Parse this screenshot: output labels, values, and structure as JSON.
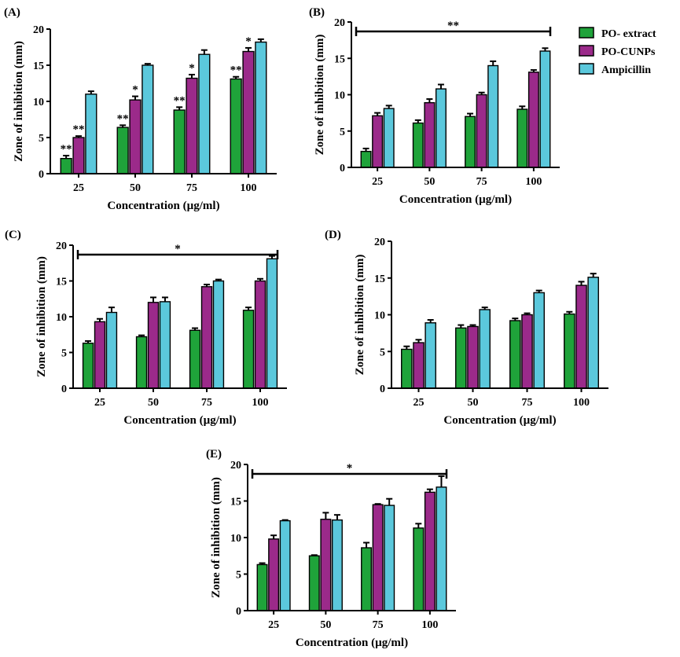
{
  "colors": {
    "series": [
      "#1fa33a",
      "#9b2a8a",
      "#5bc8dc"
    ],
    "error": "#000000"
  },
  "legend": {
    "entries": [
      "PO- extract",
      "PO-CUNPs",
      "Ampicillin"
    ]
  },
  "chart_data": [
    {
      "panel": "(A)",
      "type": "bar",
      "categories": [
        "25",
        "50",
        "75",
        "100"
      ],
      "series": [
        {
          "name": "PO- extract",
          "values": [
            2.1,
            6.4,
            8.8,
            13.1
          ],
          "errors": [
            0.4,
            0.3,
            0.4,
            0.3
          ]
        },
        {
          "name": "PO-CUNPs",
          "values": [
            5.0,
            10.2,
            13.2,
            16.9
          ],
          "errors": [
            0.2,
            0.5,
            0.5,
            0.5
          ]
        },
        {
          "name": "Ampicillin",
          "values": [
            11.0,
            15.0,
            16.5,
            18.2
          ],
          "errors": [
            0.4,
            0.2,
            0.6,
            0.4
          ]
        }
      ],
      "significance": [
        [
          "**",
          "**",
          "**",
          "**"
        ],
        [
          "**",
          "*",
          "*",
          "*"
        ],
        [
          "",
          "",
          "",
          ""
        ]
      ],
      "bracket": "",
      "ylim": [
        0,
        20
      ],
      "yticks": [
        "0",
        "5",
        "10",
        "15",
        "20"
      ],
      "xlabel": "Concentration (µg/ml)",
      "ylabel": "Zone of inhibition (mm)"
    },
    {
      "panel": "(B)",
      "type": "bar",
      "categories": [
        "25",
        "50",
        "75",
        "100"
      ],
      "series": [
        {
          "name": "PO- extract",
          "values": [
            2.2,
            6.1,
            7.0,
            8.0
          ],
          "errors": [
            0.4,
            0.4,
            0.4,
            0.4
          ]
        },
        {
          "name": "PO-CUNPs",
          "values": [
            7.1,
            8.9,
            10.0,
            13.1
          ],
          "errors": [
            0.4,
            0.5,
            0.3,
            0.3
          ]
        },
        {
          "name": "Ampicillin",
          "values": [
            8.1,
            10.8,
            14.0,
            16.0
          ],
          "errors": [
            0.4,
            0.6,
            0.6,
            0.4
          ]
        }
      ],
      "significance": [
        [
          "",
          "",
          "",
          ""
        ],
        [
          "",
          "",
          "",
          ""
        ],
        [
          "",
          "",
          "",
          ""
        ]
      ],
      "bracket": "**",
      "ylim": [
        0,
        20
      ],
      "yticks": [
        "0",
        "5",
        "10",
        "15",
        "20"
      ],
      "xlabel": "Concentration (µg/ml)",
      "ylabel": "Zone of inhibition (mm)"
    },
    {
      "panel": "(C)",
      "type": "bar",
      "categories": [
        "25",
        "50",
        "75",
        "100"
      ],
      "series": [
        {
          "name": "PO- extract",
          "values": [
            6.3,
            7.2,
            8.1,
            10.9
          ],
          "errors": [
            0.3,
            0.2,
            0.3,
            0.4
          ]
        },
        {
          "name": "PO-CUNPs",
          "values": [
            9.3,
            12.0,
            14.2,
            15.0
          ],
          "errors": [
            0.4,
            0.7,
            0.3,
            0.3
          ]
        },
        {
          "name": "Ampicillin",
          "values": [
            10.6,
            12.1,
            15.0,
            18.1
          ],
          "errors": [
            0.7,
            0.6,
            0.2,
            0.4
          ]
        }
      ],
      "significance": [
        [
          "",
          "",
          "",
          ""
        ],
        [
          "",
          "",
          "",
          ""
        ],
        [
          "",
          "",
          "",
          ""
        ]
      ],
      "bracket": "*",
      "ylim": [
        0,
        20
      ],
      "yticks": [
        "0",
        "5",
        "10",
        "15",
        "20"
      ],
      "xlabel": "Concentration (µg/ml)",
      "ylabel": "Zone of inhibition (mm)"
    },
    {
      "panel": "(D)",
      "type": "bar",
      "categories": [
        "25",
        "50",
        "75",
        "100"
      ],
      "series": [
        {
          "name": "PO- extract",
          "values": [
            5.3,
            8.2,
            9.2,
            10.1
          ],
          "errors": [
            0.4,
            0.4,
            0.3,
            0.3
          ]
        },
        {
          "name": "PO-CUNPs",
          "values": [
            6.2,
            8.4,
            10.0,
            14.0
          ],
          "errors": [
            0.4,
            0.2,
            0.2,
            0.5
          ]
        },
        {
          "name": "Ampicillin",
          "values": [
            8.9,
            10.7,
            13.0,
            15.1
          ],
          "errors": [
            0.4,
            0.3,
            0.3,
            0.5
          ]
        }
      ],
      "significance": [
        [
          "",
          "",
          "",
          ""
        ],
        [
          "",
          "",
          "",
          ""
        ],
        [
          "",
          "",
          "",
          ""
        ]
      ],
      "bracket": "",
      "ylim": [
        0,
        20
      ],
      "yticks": [
        "0",
        "5",
        "10",
        "15",
        "20"
      ],
      "xlabel": "Concentration (µg/ml)",
      "ylabel": "Zone of inhibition (mm)"
    },
    {
      "panel": "(E)",
      "type": "bar",
      "categories": [
        "25",
        "50",
        "75",
        "100"
      ],
      "series": [
        {
          "name": "PO- extract",
          "values": [
            6.3,
            7.5,
            8.6,
            11.3
          ],
          "errors": [
            0.2,
            0.1,
            0.7,
            0.6
          ]
        },
        {
          "name": "PO-CUNPs",
          "values": [
            9.8,
            12.5,
            14.5,
            16.2
          ],
          "errors": [
            0.5,
            0.9,
            0.1,
            0.4
          ]
        },
        {
          "name": "Ampicillin",
          "values": [
            12.3,
            12.4,
            14.4,
            16.9
          ],
          "errors": [
            0.1,
            0.7,
            0.9,
            1.5
          ]
        }
      ],
      "significance": [
        [
          "",
          "",
          "",
          ""
        ],
        [
          "",
          "",
          "",
          ""
        ],
        [
          "",
          "",
          "",
          ""
        ]
      ],
      "bracket": "*",
      "ylim": [
        0,
        20
      ],
      "yticks": [
        "0",
        "5",
        "10",
        "15",
        "20"
      ],
      "xlabel": "Concentration (µg/ml)",
      "ylabel": "Zone of inhibition (mm)"
    }
  ]
}
